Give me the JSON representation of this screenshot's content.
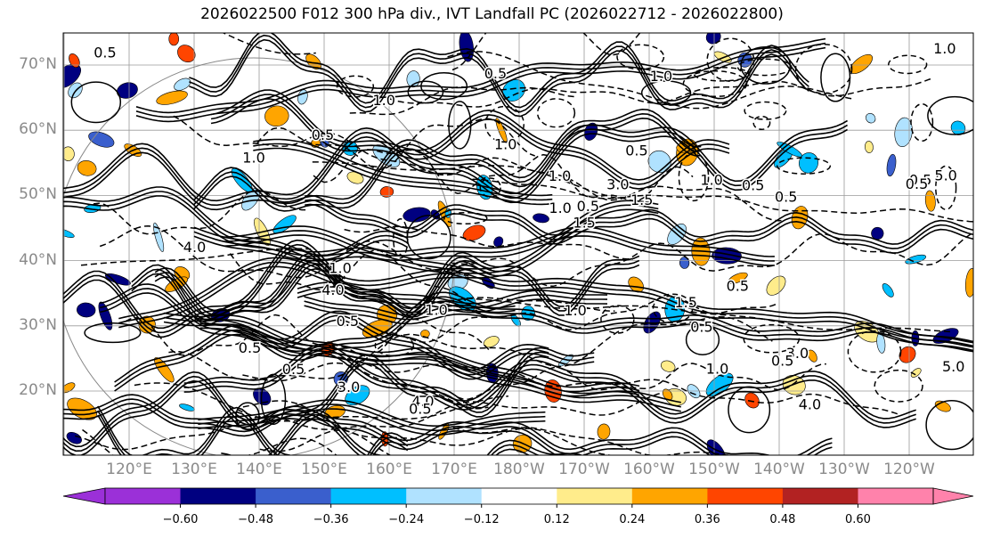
{
  "title": "2026022500 F012 300 hPa div., IVT Landfall PC (2026022712 - 2026022800)",
  "lat_labels": [
    "70°N",
    "60°N",
    "50°N",
    "40°N",
    "30°N",
    "20°N"
  ],
  "lat_values": [
    70,
    60,
    50,
    40,
    30,
    20
  ],
  "lon_labels": [
    "120°E",
    "130°E",
    "140°E",
    "150°E",
    "160°E",
    "170°E",
    "180°W",
    "170°W",
    "160°W",
    "150°W",
    "140°W",
    "130°W",
    "120°W"
  ],
  "lon_values": [
    120,
    130,
    140,
    150,
    160,
    170,
    180,
    190,
    200,
    210,
    220,
    230,
    240
  ],
  "colorbar": {
    "ticks": [
      "−0.60",
      "−0.48",
      "−0.36",
      "−0.24",
      "−0.12",
      "0.12",
      "0.24",
      "0.36",
      "0.48",
      "0.60"
    ],
    "tick_values": [
      -0.6,
      -0.48,
      -0.36,
      -0.24,
      -0.12,
      0.12,
      0.24,
      0.36,
      0.48,
      0.6
    ],
    "colors": [
      "#9b30d8",
      "#000080",
      "#3a5fcd",
      "#00bfff",
      "#b0e2ff",
      "#ffffff",
      "#ffec8b",
      "#ffa500",
      "#ff4500",
      "#b22222",
      "#ff82ab"
    ]
  },
  "contour_labels": [
    "1.0",
    "3.0",
    "4.0",
    "5.0",
    "0.5",
    "1.5",
    "3.0",
    "4.0",
    "5.0",
    "0.5",
    "1.0",
    "1.5",
    "0.5",
    "1.0",
    "0.5",
    "3.0",
    "4.0",
    "0.5",
    "1.0",
    "0.5",
    "1.0",
    "0.5",
    "1.0",
    "0.5",
    "1.0",
    "0.5",
    "4.0",
    "1.0",
    "0.5",
    "1.0",
    "0.5",
    "1.0",
    "1.5",
    "0.5",
    "0.5",
    "1.0",
    "0.5",
    "0.5",
    "1.0",
    "0.5"
  ]
}
